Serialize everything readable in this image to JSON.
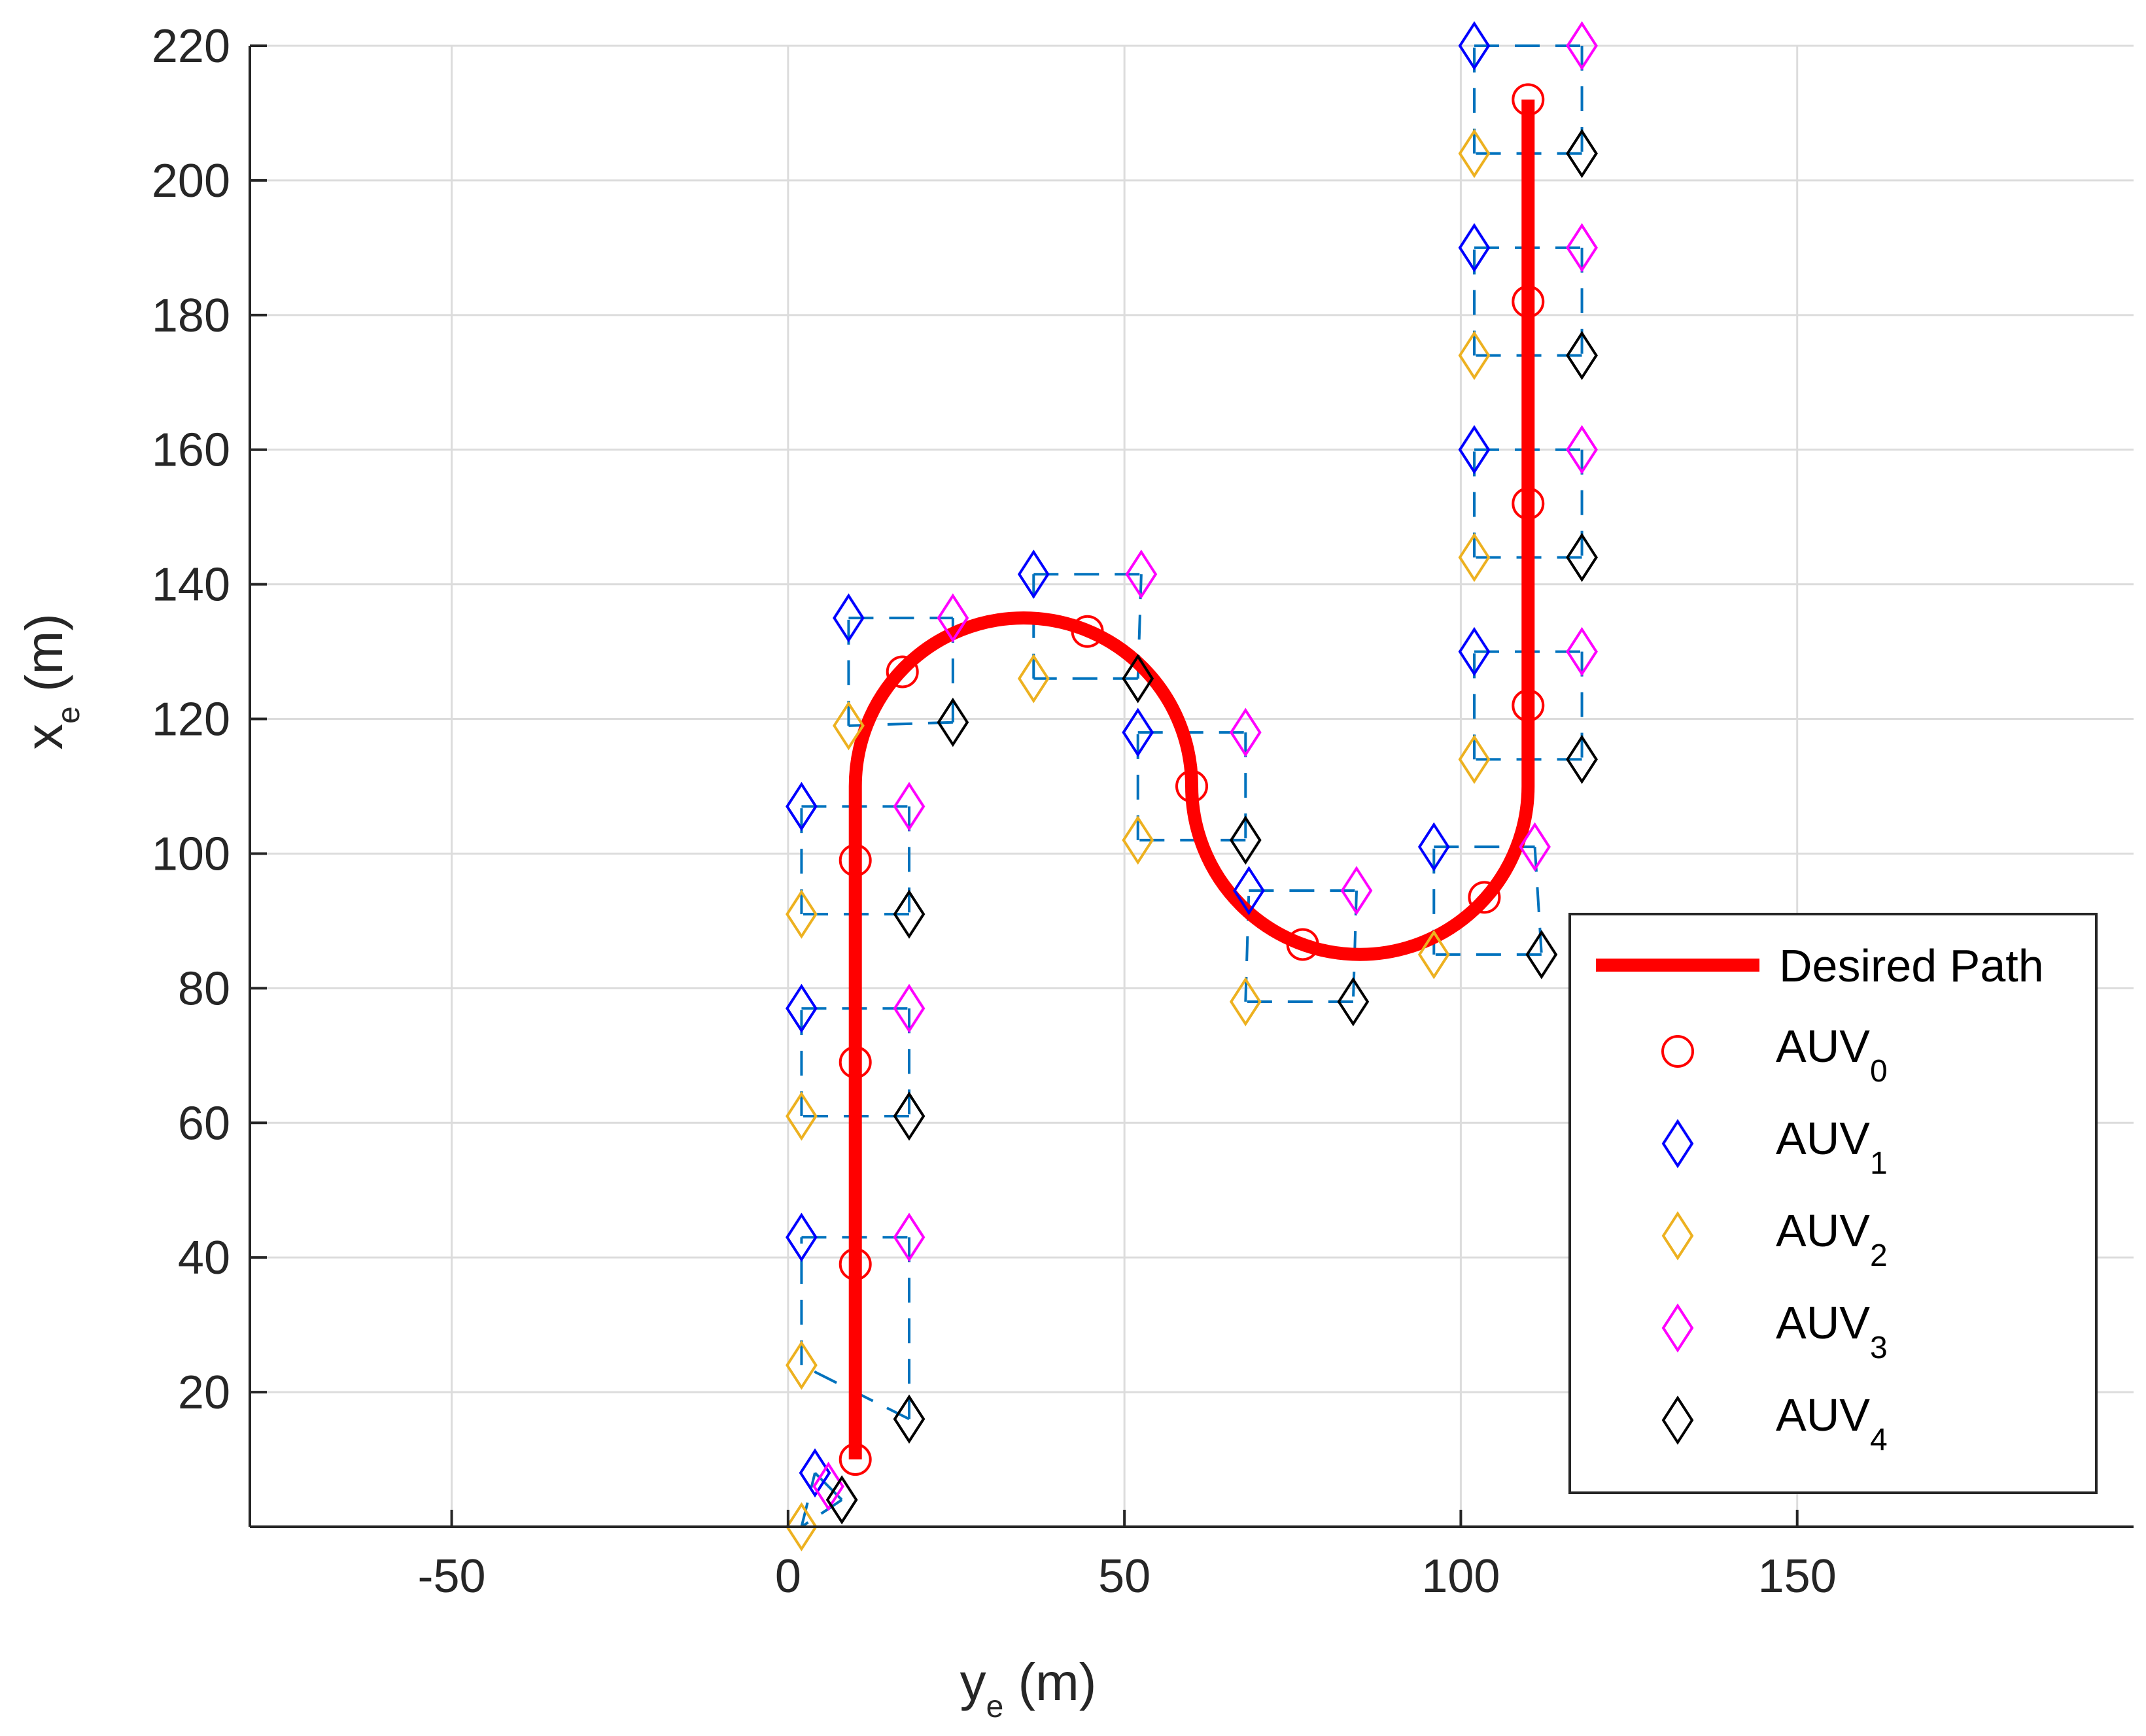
{
  "chart_data": {
    "type": "line",
    "title": "",
    "xlabel": "y",
    "xlabel_sub": "e",
    "xlabel_unit": " (m)",
    "ylabel": "x",
    "ylabel_sub": "e",
    "ylabel_unit": " (m)",
    "xlim": [
      -80,
      200
    ],
    "ylim": [
      0,
      220
    ],
    "xticks": [
      -50,
      0,
      50,
      100,
      150
    ],
    "yticks": [
      20,
      40,
      60,
      80,
      100,
      120,
      140,
      160,
      180,
      200,
      220
    ],
    "grid": true,
    "legend_location": "bottom-right",
    "desired_path": {
      "name": "Desired Path",
      "color": "#ff0000",
      "straight1": [
        [
          10,
          10
        ],
        [
          10,
          110
        ]
      ],
      "arc1": {
        "center": [
          35,
          110
        ],
        "radius": 25
      },
      "straight2": [
        [
          60,
          110
        ],
        [
          60,
          110
        ]
      ],
      "arc2": {
        "center": [
          85,
          110
        ],
        "radius": 25
      },
      "straight3": [
        [
          110,
          110
        ],
        [
          110,
          212
        ]
      ]
    },
    "series": [
      {
        "name": "AUV",
        "sub": "0",
        "marker": "circle",
        "color": "#ff0000",
        "points": [
          [
            10,
            10
          ],
          [
            10,
            39
          ],
          [
            10,
            69
          ],
          [
            10,
            99
          ],
          [
            17,
            127
          ],
          [
            44.5,
            133
          ],
          [
            60,
            110
          ],
          [
            76.5,
            86.5
          ],
          [
            103.5,
            93.5
          ],
          [
            110,
            122
          ],
          [
            110,
            152
          ],
          [
            110,
            182
          ],
          [
            110,
            212
          ]
        ]
      },
      {
        "name": "AUV",
        "sub": "1",
        "marker": "diamond",
        "color": "#0000ff",
        "points": [
          [
            4,
            8
          ],
          [
            2,
            43
          ],
          [
            2,
            77
          ],
          [
            2,
            107
          ],
          [
            9,
            135
          ],
          [
            36.5,
            141.5
          ],
          [
            52,
            118
          ],
          [
            68.5,
            94.5
          ],
          [
            96,
            101
          ],
          [
            102,
            130
          ],
          [
            102,
            160
          ],
          [
            102,
            190
          ],
          [
            102,
            220
          ]
        ]
      },
      {
        "name": "AUV",
        "sub": "2",
        "marker": "diamond",
        "color": "#edb120",
        "points": [
          [
            2,
            0
          ],
          [
            2,
            24
          ],
          [
            2,
            61
          ],
          [
            2,
            91
          ],
          [
            9,
            119
          ],
          [
            36.5,
            126
          ],
          [
            52,
            102
          ],
          [
            68,
            78
          ],
          [
            96,
            85
          ],
          [
            102,
            114
          ],
          [
            102,
            144
          ],
          [
            102,
            174
          ],
          [
            102,
            204
          ]
        ]
      },
      {
        "name": "AUV",
        "sub": "3",
        "marker": "diamond",
        "color": "#ff00ff",
        "points": [
          [
            6,
            6
          ],
          [
            18,
            43
          ],
          [
            18,
            77
          ],
          [
            18,
            107
          ],
          [
            24.5,
            135
          ],
          [
            52.5,
            141.5
          ],
          [
            68,
            118
          ],
          [
            84.5,
            94.5
          ],
          [
            111,
            101
          ],
          [
            118,
            130
          ],
          [
            118,
            160
          ],
          [
            118,
            190
          ],
          [
            118,
            220
          ]
        ]
      },
      {
        "name": "AUV",
        "sub": "4",
        "marker": "diamond",
        "color": "#000000",
        "points": [
          [
            8,
            4
          ],
          [
            18,
            16
          ],
          [
            18,
            61
          ],
          [
            18,
            91
          ],
          [
            24.5,
            119.5
          ],
          [
            52,
            126
          ],
          [
            68,
            102
          ],
          [
            84,
            78
          ],
          [
            112,
            85
          ],
          [
            118,
            114
          ],
          [
            118,
            144
          ],
          [
            118,
            174
          ],
          [
            118,
            204
          ]
        ]
      }
    ],
    "formation_links": {
      "color": "#0072bd",
      "style": "dashed"
    }
  }
}
